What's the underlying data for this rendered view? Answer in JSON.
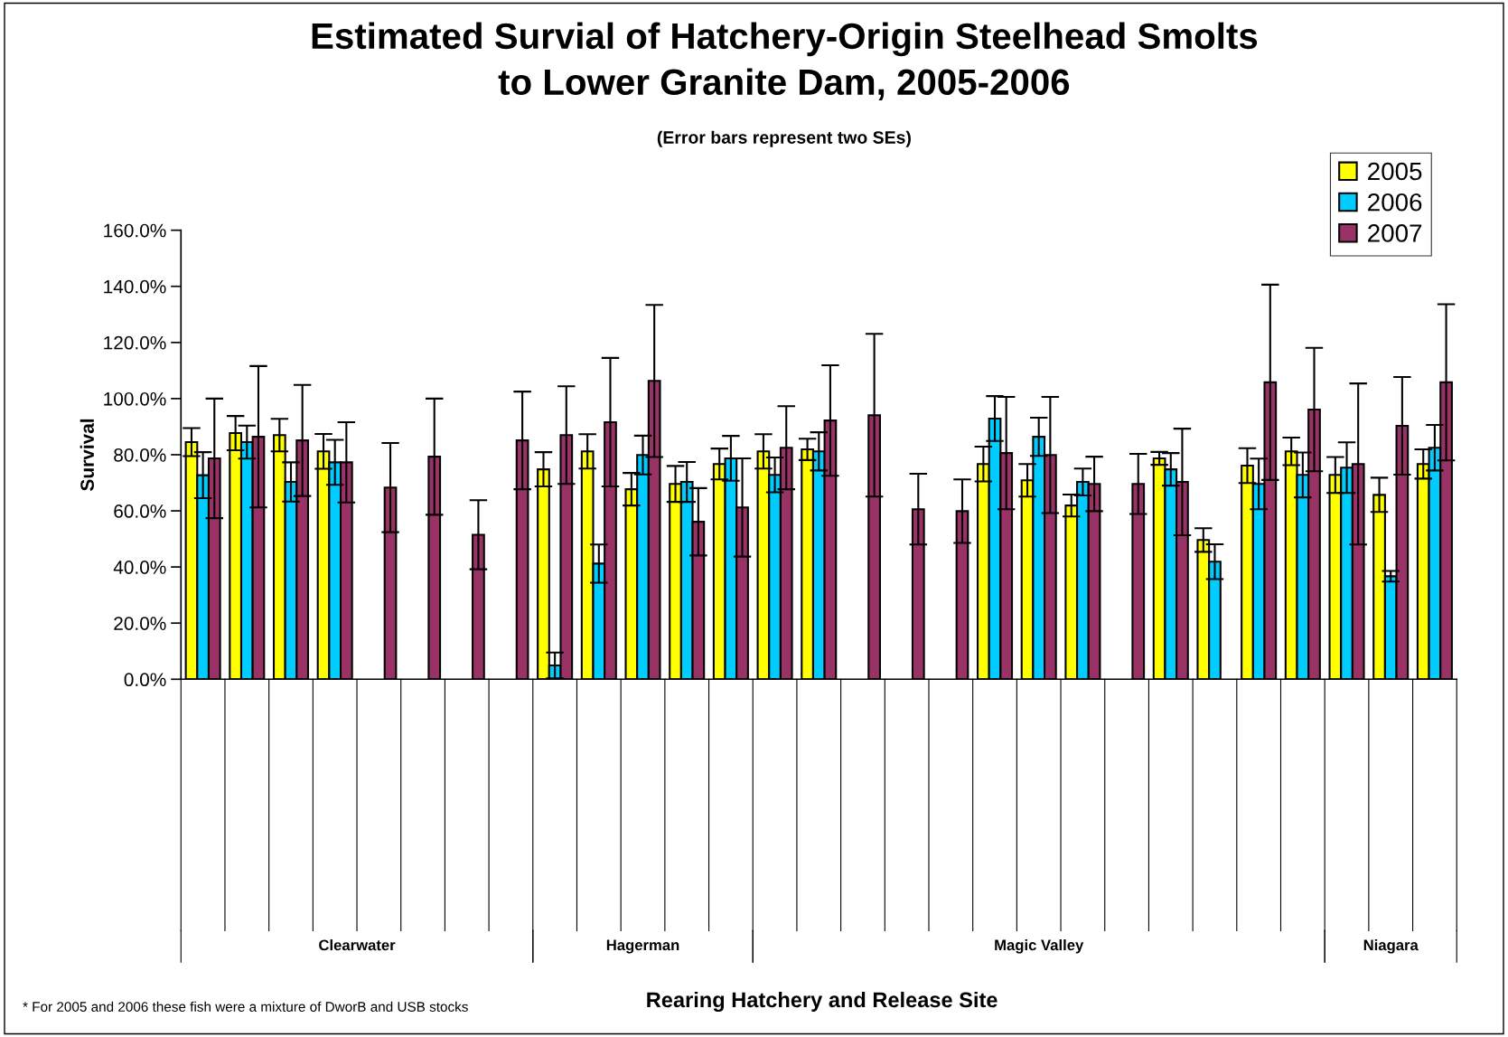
{
  "chart_data": {
    "type": "bar",
    "title": "Estimated Survial of Hatchery-Origin Steelhead Smolts\nto Lower Granite Dam, 2005-2006",
    "subtitle": "(Error bars represent two SEs)",
    "ylabel": "Survival",
    "categories": [
      null,
      null,
      null,
      null,
      null,
      null,
      null,
      null,
      null,
      null,
      null,
      null,
      null,
      null,
      null,
      null,
      null,
      null,
      null,
      null,
      null,
      null,
      null,
      null,
      null,
      null,
      null,
      null,
      null
    ],
    "series": [
      {
        "name": "2005",
        "color": "#ffff00",
        "values": [
          84.5,
          87.7,
          87.0,
          81.2,
          null,
          null,
          null,
          null,
          74.8,
          81.2,
          67.7,
          69.6,
          76.7,
          81.2,
          81.9,
          null,
          null,
          null,
          76.7,
          70.9,
          61.9,
          null,
          78.7,
          49.6,
          76.1,
          81.2,
          72.8,
          65.7,
          76.7
        ],
        "errors": [
          5,
          6.1,
          5.8,
          6.2,
          null,
          null,
          null,
          null,
          6.1,
          6.1,
          5.8,
          6.4,
          5.5,
          6.1,
          3.8,
          null,
          null,
          null,
          6.2,
          5.8,
          3.9,
          null,
          2.3,
          4.2,
          6.2,
          4.9,
          6.4,
          6.1,
          5.2
        ]
      },
      {
        "name": "2006",
        "color": "#00ccff",
        "values": [
          72.7,
          84.5,
          70.3,
          77.3,
          null,
          null,
          null,
          null,
          4.9,
          41.2,
          79.9,
          70.3,
          78.7,
          72.8,
          81.2,
          null,
          null,
          null,
          92.9,
          86.4,
          70.3,
          null,
          74.8,
          41.9,
          69.6,
          72.8,
          75.4,
          36.7,
          82.5
        ],
        "errors": [
          8.2,
          5.9,
          7,
          8,
          null,
          null,
          null,
          null,
          4.6,
          6.8,
          6.9,
          7.1,
          8,
          6.2,
          6.8,
          null,
          null,
          null,
          8,
          6.8,
          4.8,
          null,
          5.8,
          6.2,
          9,
          8,
          9,
          1.9,
          8.1
        ]
      },
      {
        "name": "2007",
        "color": "#993366",
        "values": [
          78.7,
          86.4,
          85.1,
          77.3,
          68.3,
          79.3,
          51.5,
          85.1,
          87.0,
          91.6,
          106.3,
          56.1,
          61.2,
          82.5,
          92.2,
          94.1,
          60.6,
          59.9,
          80.6,
          79.9,
          69.6,
          69.6,
          70.3,
          null,
          105.8,
          96.1,
          76.7,
          90.3,
          105.8
        ],
        "errors": [
          21.3,
          25.2,
          19.8,
          14.3,
          15.9,
          20.7,
          12.3,
          17.4,
          17.4,
          22.9,
          27.1,
          12,
          17.5,
          14.8,
          19.7,
          29,
          12.6,
          11.3,
          20,
          20.7,
          9.7,
          10.7,
          19,
          null,
          34.8,
          22,
          28.7,
          17.4,
          27.8
        ]
      }
    ],
    "ylim": [
      0,
      160
    ],
    "yticks": [
      {
        "value": 0,
        "label": "0.0%"
      },
      {
        "value": 20,
        "label": "20.0%"
      },
      {
        "value": 40,
        "label": "40.0%"
      },
      {
        "value": 60,
        "label": "60.0%"
      },
      {
        "value": 80,
        "label": "80.0%"
      },
      {
        "value": 100,
        "label": "100.0%"
      },
      {
        "value": 120,
        "label": "120.0%"
      },
      {
        "value": 140,
        "label": "140.0%"
      },
      {
        "value": 160,
        "label": "160.0%"
      }
    ],
    "grid": false,
    "legend": "top right",
    "annotations": [
      "Clearwater",
      "Hagerman",
      "Magic Valley",
      "Niagara",
      "Rearing Hatchery and Release Site",
      "* For 2005 and 2006 these fish were a mixture of DworB and USB stocks"
    ]
  }
}
